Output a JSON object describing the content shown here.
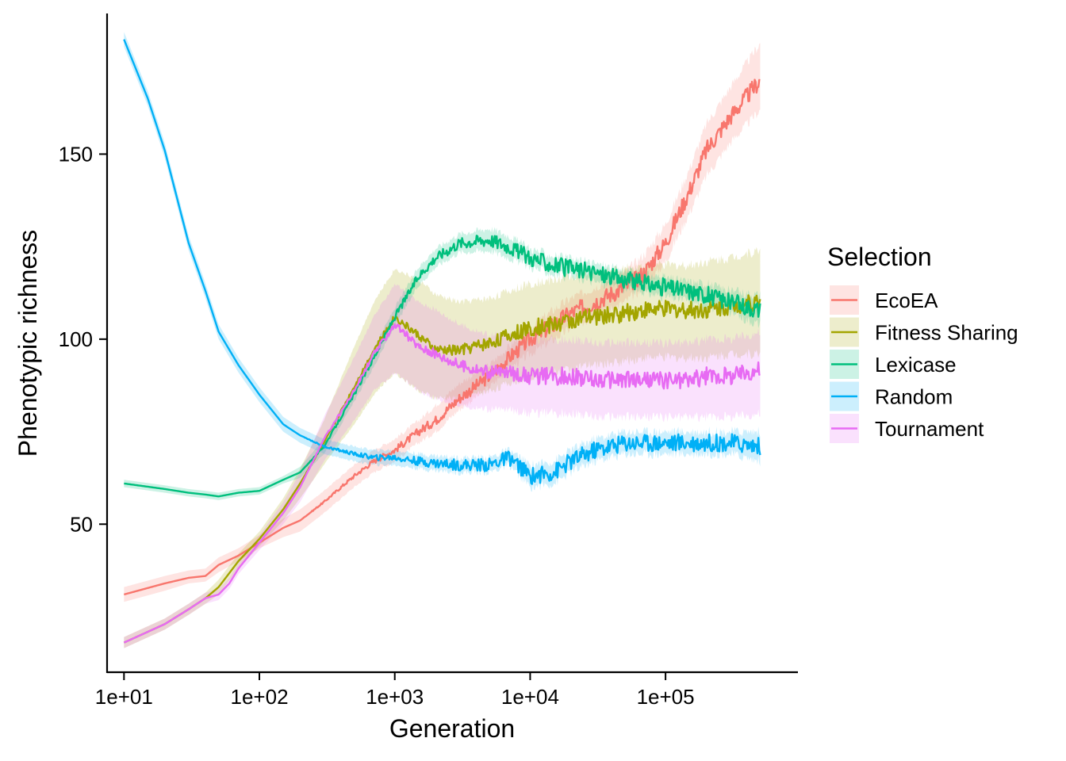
{
  "chart_data": {
    "type": "line",
    "title": "",
    "xlabel": "Generation",
    "ylabel": "Phenotypic richness",
    "x_scale": "log10",
    "xlim": [
      7.5,
      950000
    ],
    "ylim": [
      10,
      188
    ],
    "x_ticks": [
      10,
      100,
      1000,
      10000,
      100000
    ],
    "x_tick_labels": [
      "1e+01",
      "1e+02",
      "1e+03",
      "1e+04",
      "1e+05"
    ],
    "y_ticks": [
      50,
      100,
      150
    ],
    "y_tick_labels": [
      "50",
      "100",
      "150"
    ],
    "grid": false,
    "legend": {
      "title": "Selection",
      "position": "right"
    },
    "series": [
      {
        "name": "EcoEA",
        "color": "#F8766D",
        "x": [
          10,
          20,
          30,
          40,
          50,
          70,
          100,
          150,
          200,
          300,
          500,
          700,
          1000,
          1500,
          2000,
          3000,
          5000,
          7000,
          10000,
          15000,
          20000,
          30000,
          50000,
          70000,
          100000,
          150000,
          200000,
          300000,
          500000
        ],
        "y": [
          31,
          34,
          35.5,
          36,
          39,
          41.5,
          45,
          49,
          51,
          56,
          63,
          67,
          70,
          75,
          78,
          84,
          90,
          95,
          100,
          104,
          107,
          110,
          114,
          118,
          126,
          140,
          151,
          160,
          170
        ],
        "lower": [
          29,
          32,
          34,
          34.5,
          37,
          40,
          43.5,
          46.5,
          48,
          53,
          60,
          64,
          67,
          72,
          75,
          81,
          87,
          92,
          96,
          100,
          103,
          106,
          110,
          114,
          121,
          134,
          144,
          153,
          162
        ],
        "upper": [
          33,
          36,
          37.5,
          38,
          41,
          43.5,
          47,
          51.5,
          54,
          59,
          66,
          70,
          73,
          78,
          82,
          88,
          93,
          98,
          103,
          108,
          111,
          114,
          118,
          123,
          131,
          146,
          158,
          168,
          180
        ]
      },
      {
        "name": "Fitness Sharing",
        "color": "#A3A500",
        "x": [
          10,
          20,
          30,
          40,
          50,
          70,
          100,
          150,
          200,
          300,
          500,
          700,
          1000,
          1500,
          2000,
          3000,
          5000,
          7000,
          10000,
          15000,
          20000,
          30000,
          50000,
          70000,
          100000,
          150000,
          200000,
          300000,
          500000
        ],
        "y": [
          18,
          23,
          27,
          30,
          33,
          40,
          46,
          54,
          61,
          72,
          87,
          97,
          106,
          101,
          97,
          97,
          99,
          101,
          103,
          104,
          105,
          106,
          107,
          108,
          108,
          108,
          108,
          109,
          110
        ],
        "lower": [
          16.5,
          21.5,
          25.5,
          28.5,
          31,
          38,
          44,
          51,
          57,
          66,
          77,
          85,
          91,
          86,
          84,
          84,
          86,
          88,
          90,
          91,
          92,
          93,
          94,
          95,
          95,
          95,
          95,
          96,
          96
        ],
        "upper": [
          19.5,
          24.5,
          28.5,
          31.5,
          35,
          42,
          48,
          57,
          65,
          78,
          98,
          110,
          119,
          116,
          112,
          110,
          111,
          113,
          115,
          116,
          117,
          118,
          119,
          120,
          120,
          120,
          121,
          122,
          124
        ]
      },
      {
        "name": "Lexicase",
        "color": "#00BF7D",
        "x": [
          10,
          20,
          30,
          40,
          50,
          70,
          100,
          150,
          200,
          300,
          500,
          700,
          1000,
          1500,
          2000,
          3000,
          5000,
          7000,
          10000,
          15000,
          20000,
          30000,
          50000,
          70000,
          100000,
          150000,
          200000,
          300000,
          500000
        ],
        "y": [
          61,
          59.5,
          58.5,
          58,
          57.5,
          58.5,
          59,
          62,
          64,
          71,
          85,
          95,
          106,
          117,
          122,
          126,
          127,
          125,
          122,
          120,
          119,
          118,
          116,
          115,
          114,
          113,
          112,
          110,
          108
        ],
        "lower": [
          60,
          58.5,
          57.5,
          57,
          56.5,
          57.5,
          58,
          61,
          62.5,
          69,
          83,
          92.5,
          103.5,
          114.5,
          119.5,
          123.5,
          124,
          122,
          119.5,
          117.5,
          116.5,
          115.5,
          113.5,
          112.5,
          111.5,
          110.5,
          109,
          107,
          104
        ],
        "upper": [
          62,
          60.5,
          59.5,
          59,
          58.5,
          59.5,
          60,
          63,
          65.5,
          73,
          87,
          97.5,
          108.5,
          119.5,
          124.5,
          128.5,
          130,
          128,
          124.5,
          122.5,
          121.5,
          120.5,
          118.5,
          117.5,
          116.5,
          115.5,
          115,
          113,
          112
        ]
      },
      {
        "name": "Random",
        "color": "#00B0F6",
        "x": [
          10,
          15,
          20,
          30,
          40,
          50,
          70,
          100,
          150,
          200,
          300,
          500,
          700,
          1000,
          1500,
          2000,
          3000,
          5000,
          7000,
          10000,
          15000,
          20000,
          30000,
          50000,
          70000,
          100000,
          150000,
          200000,
          300000,
          500000
        ],
        "y": [
          181,
          165,
          151,
          126,
          113,
          102,
          93,
          85,
          77,
          74,
          71,
          69,
          68,
          68,
          67,
          66.5,
          66,
          66,
          68,
          63,
          64,
          67,
          70,
          72,
          72,
          72,
          72,
          72,
          72,
          71
        ],
        "lower": [
          179,
          163,
          149,
          124,
          111,
          100,
          91,
          83,
          75,
          72,
          69,
          67,
          66,
          66,
          65,
          64.5,
          64,
          64,
          66,
          60,
          61,
          64,
          67,
          69,
          69,
          69,
          69,
          69,
          69,
          67
        ],
        "upper": [
          183,
          167,
          153,
          128,
          115,
          104,
          95,
          87,
          79,
          76,
          73,
          71,
          70,
          70,
          69,
          68.5,
          68,
          68,
          70,
          66,
          67,
          70,
          73,
          75,
          75,
          75,
          75,
          75,
          75,
          75
        ]
      },
      {
        "name": "Tournament",
        "color": "#E76BF3",
        "x": [
          10,
          20,
          30,
          40,
          50,
          60,
          70,
          100,
          150,
          200,
          300,
          500,
          700,
          1000,
          1500,
          2000,
          3000,
          5000,
          7000,
          10000,
          15000,
          20000,
          30000,
          50000,
          70000,
          100000,
          150000,
          200000,
          300000,
          500000
        ],
        "y": [
          18,
          23,
          27,
          30,
          31,
          34,
          38,
          45,
          53,
          60,
          73,
          86,
          96,
          104,
          98,
          96,
          93,
          91,
          91,
          90,
          90,
          90,
          89,
          89,
          89,
          89,
          89,
          90,
          90,
          92
        ],
        "lower": [
          16.5,
          21.5,
          25.5,
          28.5,
          29.5,
          32.5,
          36.5,
          43,
          50,
          56,
          67,
          78,
          86,
          91,
          86,
          84,
          82,
          81,
          81,
          80,
          80,
          80,
          79,
          79,
          79,
          79,
          79,
          79,
          79,
          80
        ],
        "upper": [
          19.5,
          24.5,
          28.5,
          31.5,
          32.5,
          35.5,
          39.5,
          47,
          56,
          64,
          79,
          95,
          106,
          115,
          110,
          108,
          104,
          101,
          101,
          100,
          100,
          100,
          99,
          99,
          99,
          99,
          99,
          100,
          100,
          102
        ]
      }
    ]
  }
}
